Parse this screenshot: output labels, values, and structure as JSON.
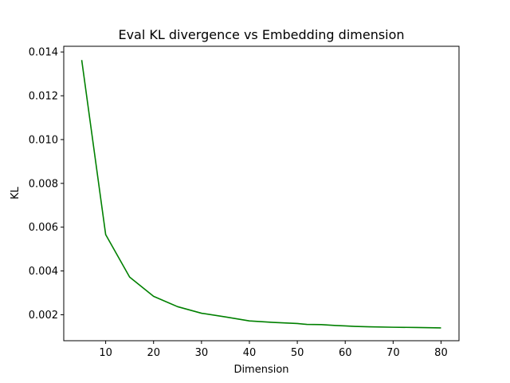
{
  "chart_data": {
    "type": "line",
    "title": "Eval KL divergence vs Embedding dimension",
    "xlabel": "Dimension",
    "ylabel": "KL",
    "xlim": [
      1.25,
      83.75
    ],
    "ylim": [
      0.000815,
      0.01426
    ],
    "xticks": [
      10,
      20,
      30,
      40,
      50,
      60,
      70,
      80
    ],
    "xtick_labels": [
      "10",
      "20",
      "30",
      "40",
      "50",
      "60",
      "70",
      "80"
    ],
    "yticks": [
      0.002,
      0.004,
      0.006,
      0.008,
      0.01,
      0.012,
      0.014
    ],
    "ytick_labels": [
      "0.002",
      "0.004",
      "0.006",
      "0.008",
      "0.010",
      "0.012",
      "0.014"
    ],
    "grid": false,
    "legend": "none",
    "series": [
      {
        "color": "#008000",
        "x": [
          5,
          10,
          15,
          20,
          25,
          30,
          35,
          40,
          45,
          50,
          52,
          55,
          58,
          60,
          62,
          65,
          70,
          75,
          80
        ],
        "y": [
          0.01363,
          0.00566,
          0.00372,
          0.00284,
          0.00237,
          0.00207,
          0.0019,
          0.00172,
          0.00165,
          0.0016,
          0.00156,
          0.00155,
          0.00151,
          0.00149,
          0.00147,
          0.00145,
          0.00143,
          0.00142,
          0.0014
        ]
      }
    ]
  }
}
